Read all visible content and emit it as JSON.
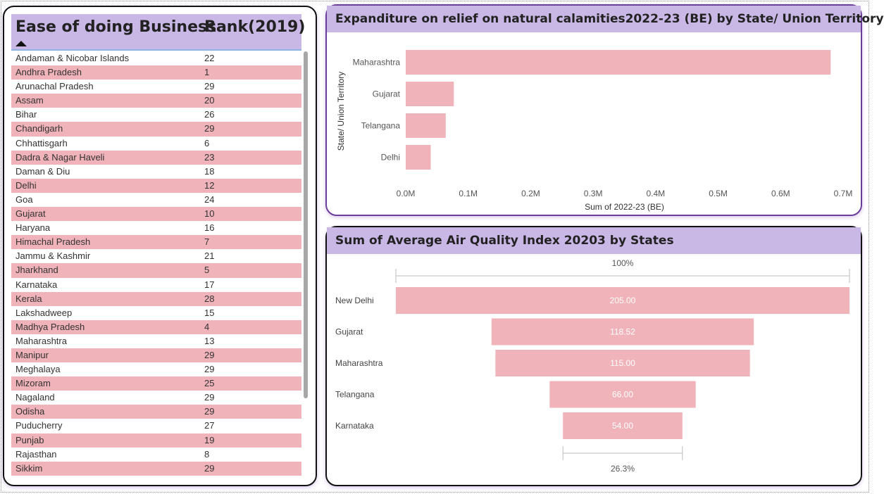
{
  "table": {
    "headers": {
      "state": "Ease of doing Business",
      "rank": "Rank(2019)"
    },
    "rows": [
      {
        "state": "Andaman & Nicobar Islands",
        "rank": "22"
      },
      {
        "state": "Andhra Pradesh",
        "rank": "1"
      },
      {
        "state": "Arunachal Pradesh",
        "rank": "29"
      },
      {
        "state": "Assam",
        "rank": "20"
      },
      {
        "state": "Bihar",
        "rank": "26"
      },
      {
        "state": "Chandigarh",
        "rank": "29"
      },
      {
        "state": "Chhattisgarh",
        "rank": "6"
      },
      {
        "state": "Dadra & Nagar Haveli",
        "rank": "23"
      },
      {
        "state": "Daman & Diu",
        "rank": "18"
      },
      {
        "state": "Delhi",
        "rank": "12"
      },
      {
        "state": "Goa",
        "rank": "24"
      },
      {
        "state": "Gujarat",
        "rank": "10"
      },
      {
        "state": "Haryana",
        "rank": "16"
      },
      {
        "state": "Himachal Pradesh",
        "rank": "7"
      },
      {
        "state": "Jammu & Kashmir",
        "rank": "21"
      },
      {
        "state": "Jharkhand",
        "rank": "5"
      },
      {
        "state": "Karnataka",
        "rank": "17"
      },
      {
        "state": "Kerala",
        "rank": "28"
      },
      {
        "state": "Lakshadweep",
        "rank": "15"
      },
      {
        "state": "Madhya Pradesh",
        "rank": "4"
      },
      {
        "state": "Maharashtra",
        "rank": "13"
      },
      {
        "state": "Manipur",
        "rank": "29"
      },
      {
        "state": "Meghalaya",
        "rank": "29"
      },
      {
        "state": "Mizoram",
        "rank": "25"
      },
      {
        "state": "Nagaland",
        "rank": "29"
      },
      {
        "state": "Odisha",
        "rank": "29"
      },
      {
        "state": "Puducherry",
        "rank": "27"
      },
      {
        "state": "Punjab",
        "rank": "19"
      },
      {
        "state": "Rajasthan",
        "rank": "8"
      },
      {
        "state": "Sikkim",
        "rank": "29"
      }
    ],
    "sort_icon": "sort-ascending-icon"
  },
  "colors": {
    "bar": "#efb3b9",
    "header": "#c9b8e6",
    "row_alt": "#efb3b9"
  },
  "chart_data": [
    {
      "type": "bar",
      "orientation": "horizontal",
      "title": "Expanditure on relief on natural calamities2022-23 (BE) by State/ Union Territory",
      "xlabel": "Sum of 2022-23 (BE)",
      "ylabel": "State/ Union Territory",
      "categories": [
        "Maharashtra",
        "Gujarat",
        "Telangana",
        "Delhi"
      ],
      "values": [
        0.68,
        0.077,
        0.064,
        0.04
      ],
      "value_unit": "M",
      "xlim": [
        0,
        0.7
      ],
      "x_ticks": [
        "0.0M",
        "0.1M",
        "0.2M",
        "0.3M",
        "0.4M",
        "0.5M",
        "0.6M",
        "0.7M"
      ]
    },
    {
      "type": "funnel",
      "title": "Sum of Average Air Quality Index 20203 by States",
      "categories": [
        "New Delhi",
        "Gujarat",
        "Maharashtra",
        "Telangana",
        "Karnataka"
      ],
      "values": [
        205,
        118.52,
        115,
        66,
        54
      ],
      "value_labels": [
        "205.00",
        "118.52",
        "115.00",
        "66.00",
        "54.00"
      ],
      "top_label": "100%",
      "bottom_label": "26.3%"
    }
  ]
}
